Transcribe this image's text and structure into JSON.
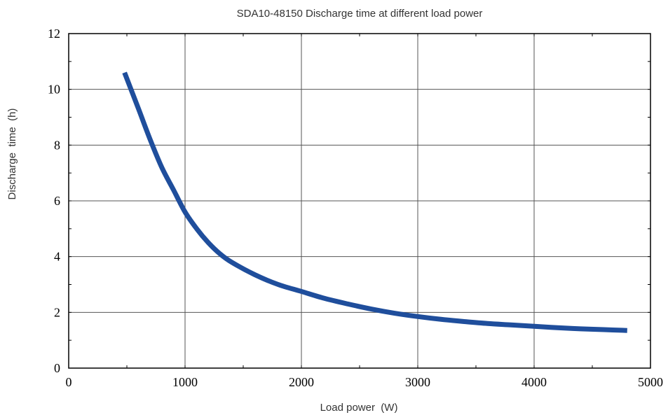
{
  "chart_data": {
    "type": "line",
    "title": "SDA10-48150  Discharge time at different load power",
    "xlabel": "Load power  (W)",
    "ylabel": "Discharge  time  (h)",
    "xlim": [
      0,
      5000
    ],
    "ylim": [
      0,
      12
    ],
    "x_ticks": [
      0,
      1000,
      2000,
      3000,
      4000,
      5000
    ],
    "y_ticks": [
      0,
      2,
      4,
      6,
      8,
      10,
      12
    ],
    "grid": true,
    "series": [
      {
        "color": "#1f4e9c",
        "x": [
          480,
          600,
          700,
          800,
          900,
          1000,
          1100,
          1200,
          1300,
          1400,
          1600,
          1800,
          2000,
          2200,
          2400,
          2600,
          2800,
          3000,
          3200,
          3400,
          3600,
          3800,
          4000,
          4200,
          4400,
          4600,
          4800
        ],
        "y": [
          10.6,
          9.3,
          8.2,
          7.2,
          6.4,
          5.6,
          5.0,
          4.5,
          4.1,
          3.8,
          3.35,
          3.0,
          2.75,
          2.5,
          2.3,
          2.12,
          1.97,
          1.85,
          1.75,
          1.67,
          1.6,
          1.55,
          1.5,
          1.45,
          1.41,
          1.38,
          1.35
        ]
      }
    ]
  }
}
